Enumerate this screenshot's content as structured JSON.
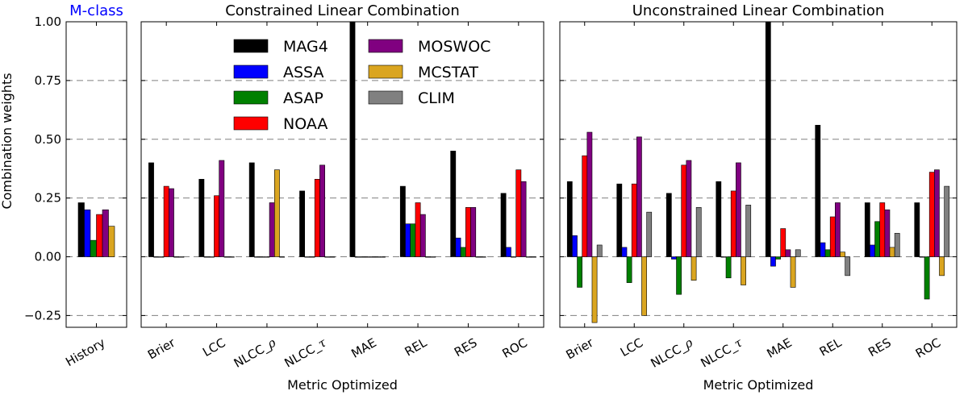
{
  "figure": {
    "ylabel": "Combination weights",
    "ylim": [
      -0.3,
      1.0
    ],
    "yticks": [
      -0.25,
      0.0,
      0.25,
      0.5,
      0.75,
      1.0
    ],
    "ytick_labels": [
      "−0.25",
      "0.00",
      "0.25",
      "0.50",
      "0.75",
      "1.00"
    ],
    "grid": "dashed horizontal at ticks",
    "colors": {
      "MAG4": "#000000",
      "ASSA": "#0000ff",
      "ASAP": "#008000",
      "NOAA": "#ff0000",
      "MOSWOC": "#800080",
      "MCSTAT": "#daa520",
      "CLIM": "#808080"
    }
  },
  "chart_data": [
    {
      "type": "bar",
      "title": "M-class",
      "title_color": "#0000ff",
      "xlabel": "",
      "ylabel": "Combination weights",
      "ylim": [
        -0.3,
        1.0
      ],
      "categories": [
        "History"
      ],
      "series": [
        {
          "name": "MAG4",
          "values": [
            0.23
          ]
        },
        {
          "name": "ASSA",
          "values": [
            0.2
          ]
        },
        {
          "name": "ASAP",
          "values": [
            0.07
          ]
        },
        {
          "name": "NOAA",
          "values": [
            0.18
          ]
        },
        {
          "name": "MOSWOC",
          "values": [
            0.2
          ]
        },
        {
          "name": "MCSTAT",
          "values": [
            0.13
          ]
        }
      ]
    },
    {
      "type": "bar",
      "title": "Constrained Linear Combination",
      "xlabel": "Metric Optimized",
      "ylim": [
        -0.3,
        1.0
      ],
      "categories": [
        "Brier",
        "LCC",
        "NLCC_ρ",
        "NLCC_τ",
        "MAE",
        "REL",
        "RES",
        "ROC"
      ],
      "legend": {
        "position": "upper-left",
        "entries": [
          "MAG4",
          "ASSA",
          "ASAP",
          "NOAA",
          "MOSWOC",
          "MCSTAT",
          "CLIM"
        ]
      },
      "series": [
        {
          "name": "MAG4",
          "values": [
            0.4,
            0.33,
            0.4,
            0.28,
            1.0,
            0.3,
            0.45,
            0.27
          ]
        },
        {
          "name": "ASSA",
          "values": [
            0.0,
            0.0,
            0.0,
            0.0,
            0.0,
            0.14,
            0.08,
            0.04
          ]
        },
        {
          "name": "ASAP",
          "values": [
            0.0,
            0.0,
            0.0,
            0.0,
            0.0,
            0.14,
            0.04,
            0.0
          ]
        },
        {
          "name": "NOAA",
          "values": [
            0.3,
            0.26,
            0.0,
            0.33,
            0.0,
            0.23,
            0.21,
            0.37
          ]
        },
        {
          "name": "MOSWOC",
          "values": [
            0.29,
            0.41,
            0.23,
            0.39,
            0.0,
            0.18,
            0.21,
            0.32
          ]
        },
        {
          "name": "MCSTAT",
          "values": [
            0.0,
            0.0,
            0.37,
            0.0,
            0.0,
            0.0,
            0.0,
            0.0
          ]
        },
        {
          "name": "CLIM",
          "values": [
            0.0,
            0.0,
            0.0,
            0.0,
            0.0,
            0.0,
            0.0,
            0.0
          ]
        }
      ]
    },
    {
      "type": "bar",
      "title": "Unconstrained Linear Combination",
      "xlabel": "Metric Optimized",
      "ylim": [
        -0.3,
        1.0
      ],
      "categories": [
        "Brier",
        "LCC",
        "NLCC_ρ",
        "NLCC_τ",
        "MAE",
        "REL",
        "RES",
        "ROC"
      ],
      "series": [
        {
          "name": "MAG4",
          "values": [
            0.32,
            0.31,
            0.27,
            0.32,
            1.0,
            0.56,
            0.23,
            0.23
          ]
        },
        {
          "name": "ASSA",
          "values": [
            0.09,
            0.04,
            -0.01,
            0.0,
            -0.04,
            0.06,
            0.05,
            0.0
          ]
        },
        {
          "name": "ASAP",
          "values": [
            -0.13,
            -0.11,
            -0.16,
            -0.09,
            -0.01,
            0.03,
            0.15,
            -0.18
          ]
        },
        {
          "name": "NOAA",
          "values": [
            0.43,
            0.31,
            0.39,
            0.28,
            0.12,
            0.17,
            0.23,
            0.36
          ]
        },
        {
          "name": "MOSWOC",
          "values": [
            0.53,
            0.51,
            0.41,
            0.4,
            0.03,
            0.23,
            0.2,
            0.37
          ]
        },
        {
          "name": "MCSTAT",
          "values": [
            -0.28,
            -0.25,
            -0.1,
            -0.12,
            -0.13,
            0.02,
            0.04,
            -0.08
          ]
        },
        {
          "name": "CLIM",
          "values": [
            0.05,
            0.19,
            0.21,
            0.22,
            0.03,
            -0.08,
            0.1,
            0.3
          ]
        }
      ]
    }
  ]
}
